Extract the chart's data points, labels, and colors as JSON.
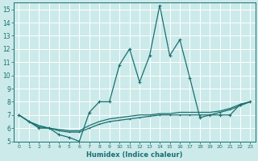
{
  "xlabel": "Humidex (Indice chaleur)",
  "ylabel": "",
  "background_color": "#cceaea",
  "grid_color": "#ffffff",
  "line_color": "#1a7070",
  "xlim": [
    -0.5,
    23.5
  ],
  "ylim": [
    5,
    15.5
  ],
  "yticks": [
    5,
    6,
    7,
    8,
    9,
    10,
    11,
    12,
    13,
    14,
    15
  ],
  "xticks": [
    0,
    1,
    2,
    3,
    4,
    5,
    6,
    7,
    8,
    9,
    10,
    11,
    12,
    13,
    14,
    15,
    16,
    17,
    18,
    19,
    20,
    21,
    22,
    23
  ],
  "series1_x": [
    0,
    1,
    2,
    3,
    4,
    5,
    6,
    7,
    8,
    9,
    10,
    11,
    12,
    13,
    14,
    15,
    16,
    17,
    18,
    19,
    20,
    21,
    22,
    23
  ],
  "series1_y": [
    7.0,
    6.5,
    6.0,
    6.0,
    5.5,
    5.3,
    5.0,
    7.2,
    8.0,
    8.0,
    10.8,
    12.0,
    9.5,
    11.5,
    15.3,
    11.5,
    12.7,
    9.8,
    6.8,
    7.0,
    7.0,
    7.0,
    7.8,
    8.0
  ],
  "series2_x": [
    0,
    1,
    2,
    3,
    4,
    5,
    6,
    7,
    8,
    9,
    10,
    11,
    12,
    13,
    14,
    15,
    16,
    17,
    18,
    19,
    20,
    21,
    22,
    23
  ],
  "series2_y": [
    7.0,
    6.5,
    6.1,
    6.0,
    5.8,
    5.7,
    5.7,
    6.0,
    6.3,
    6.5,
    6.6,
    6.7,
    6.8,
    6.9,
    7.0,
    7.0,
    7.0,
    7.0,
    7.0,
    7.0,
    7.2,
    7.4,
    7.7,
    8.0
  ],
  "series3_x": [
    0,
    1,
    2,
    3,
    4,
    5,
    6,
    7,
    8,
    9,
    10,
    11,
    12,
    13,
    14,
    15,
    16,
    17,
    18,
    19,
    20,
    21,
    22,
    23
  ],
  "series3_y": [
    7.0,
    6.5,
    6.2,
    6.0,
    5.9,
    5.8,
    5.8,
    6.2,
    6.5,
    6.7,
    6.8,
    6.9,
    7.0,
    7.0,
    7.1,
    7.1,
    7.2,
    7.2,
    7.2,
    7.2,
    7.3,
    7.5,
    7.8,
    8.0
  ]
}
